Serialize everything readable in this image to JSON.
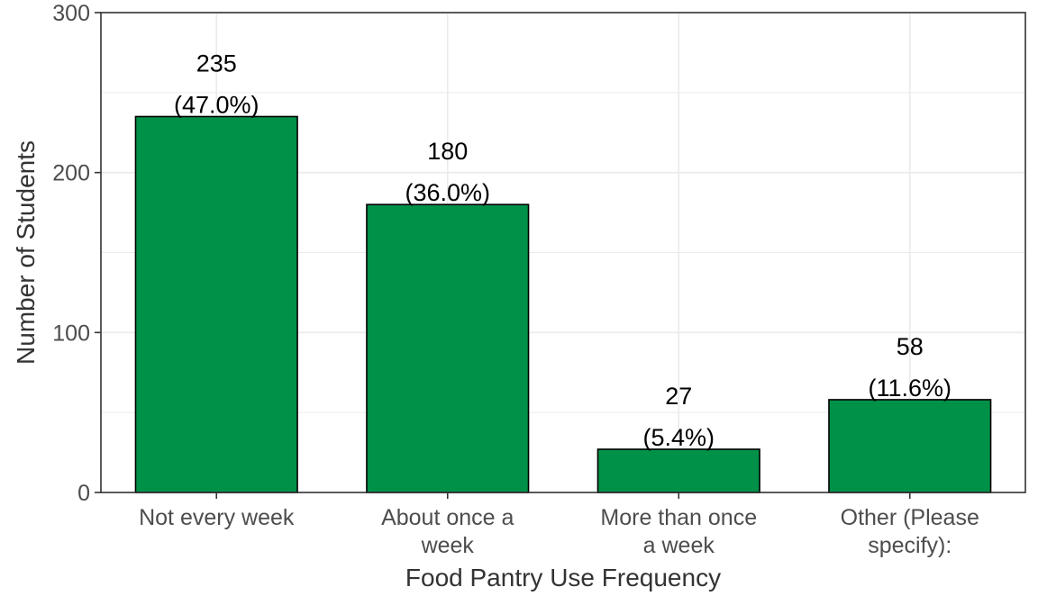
{
  "chart_data": {
    "type": "bar",
    "categories": [
      [
        "Not every week"
      ],
      [
        "About once a",
        "week"
      ],
      [
        "More than once",
        "a week"
      ],
      [
        "Other (Please",
        "specify):"
      ]
    ],
    "values": [
      235,
      180,
      27,
      58
    ],
    "value_labels": [
      "235",
      "180",
      "27",
      "58"
    ],
    "percent_labels": [
      "(47.0%)",
      "(36.0%)",
      "(5.4%)",
      "(11.6%)"
    ],
    "xlabel": "Food Pantry Use Frequency",
    "ylabel": "Number of Students",
    "ylim": [
      0,
      300
    ],
    "yticks": [
      0,
      100,
      200,
      300
    ],
    "ytick_labels": [
      "0",
      "100",
      "200",
      "300"
    ],
    "grid": true,
    "bar_color": "#009149",
    "bar_edge_color": "#000000",
    "grid_color": "#ebebeb",
    "axis_color": "#333333"
  }
}
